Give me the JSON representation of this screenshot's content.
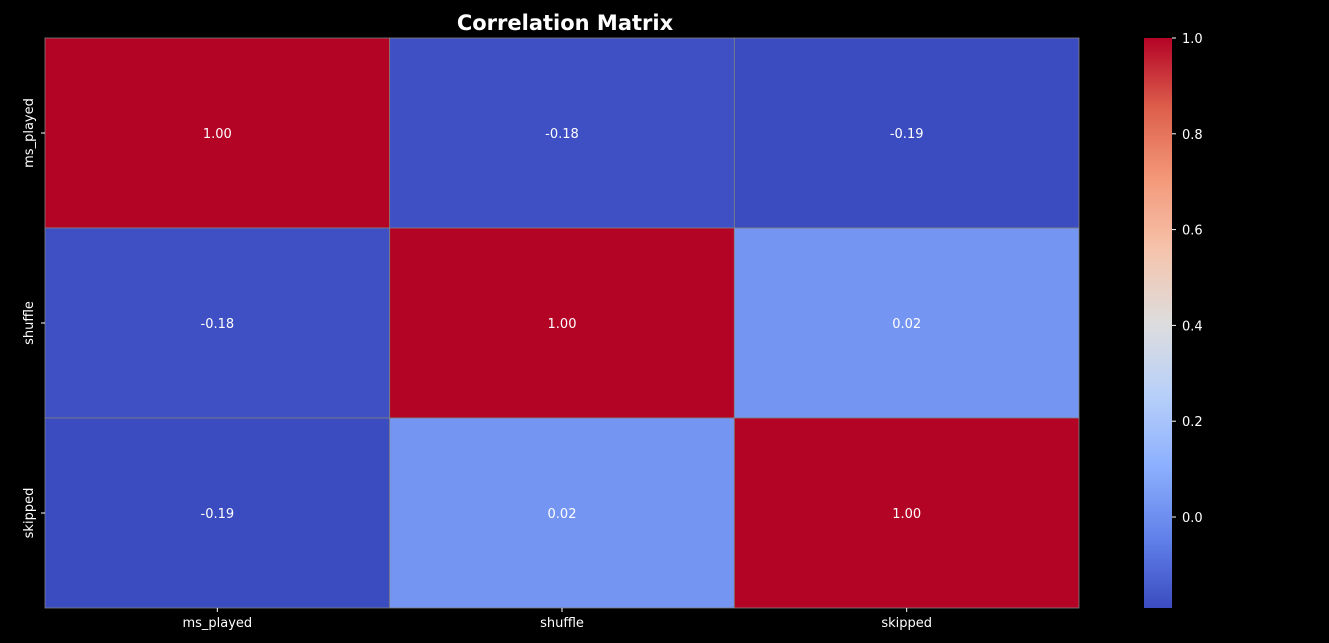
{
  "chart_data": {
    "type": "heatmap",
    "title": "Correlation Matrix",
    "x_categories": [
      "ms_played",
      "shuffle",
      "skipped"
    ],
    "y_categories": [
      "ms_played",
      "shuffle",
      "skipped"
    ],
    "values": [
      [
        1.0,
        -0.18,
        -0.19
      ],
      [
        -0.18,
        1.0,
        0.02
      ],
      [
        -0.19,
        0.02,
        1.0
      ]
    ],
    "cell_labels": [
      [
        "1.00",
        "-0.18",
        "-0.19"
      ],
      [
        "-0.18",
        "1.00",
        "0.02"
      ],
      [
        "-0.19",
        "0.02",
        "1.00"
      ]
    ],
    "colormap": "coolwarm",
    "vmin": -0.19,
    "vmax": 1.0,
    "colorbar_ticks": [
      0.0,
      0.2,
      0.4,
      0.6,
      0.8,
      1.0
    ],
    "colorbar_tick_labels": [
      "0.0",
      "0.2",
      "0.4",
      "0.6",
      "0.8",
      "1.0"
    ],
    "background_color": "#000000",
    "grid_line_color": "#808080",
    "text_color": "#ffffff"
  }
}
